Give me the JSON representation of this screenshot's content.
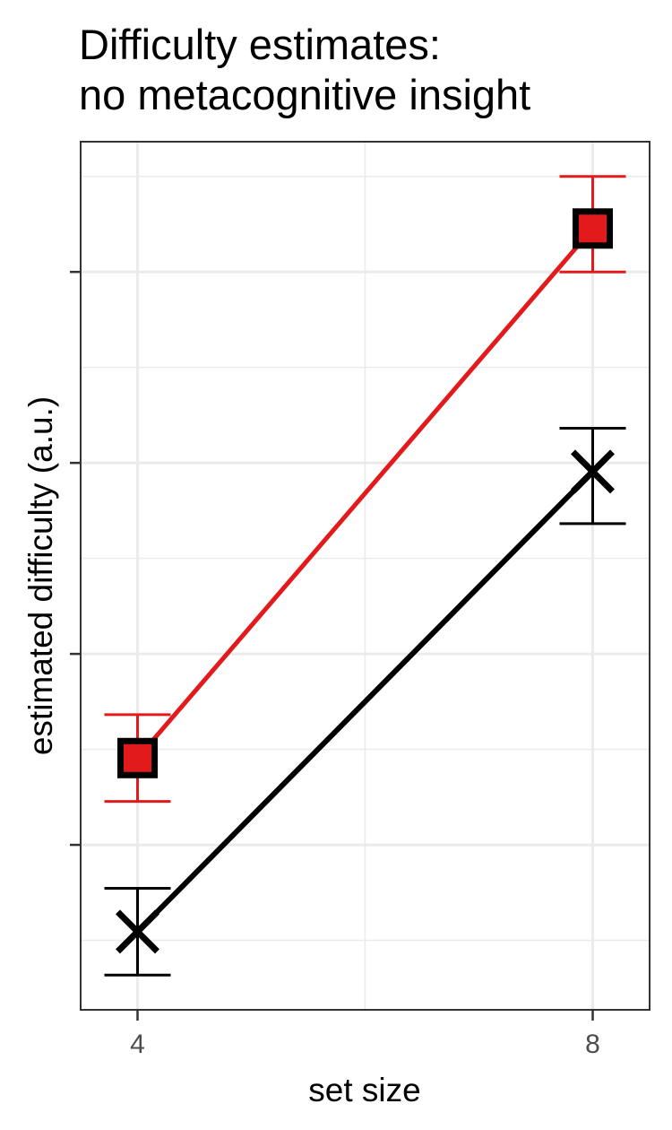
{
  "chart_data": {
    "type": "line",
    "title_lines": [
      "Difficulty estimates:",
      "no metacognitive insight"
    ],
    "xlabel": "set size",
    "ylabel": "estimated difficulty (a.u.)",
    "x": [
      4,
      8
    ],
    "x_ticks": [
      "4",
      "8"
    ],
    "xlim": [
      3.5,
      8.5
    ],
    "ylim": [
      0,
      100
    ],
    "y_tick_labels_shown": false,
    "y_major_ticks": [
      19,
      41,
      63,
      85
    ],
    "y_minor_ticks": [
      8,
      30,
      52,
      74,
      96
    ],
    "grid": true,
    "series": [
      {
        "marker": "square",
        "color": "#e31a1c",
        "marker_edge": "#000000",
        "values": [
          29,
          90
        ],
        "err_low": [
          24,
          85
        ],
        "err_high": [
          34,
          96
        ]
      },
      {
        "marker": "x",
        "color": "#000000",
        "values": [
          9,
          62
        ],
        "err_low": [
          4,
          56
        ],
        "err_high": [
          14,
          67
        ]
      }
    ]
  }
}
